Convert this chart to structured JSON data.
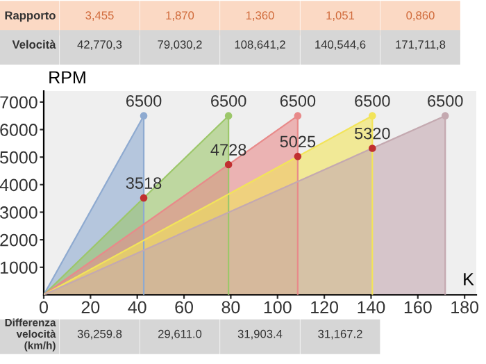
{
  "chart_data": {
    "type": "area",
    "xlabel": "K",
    "ylabel": "RPM",
    "xlim": [
      0,
      185
    ],
    "xticks": [
      0,
      20,
      40,
      60,
      80,
      100,
      120,
      140,
      160,
      180
    ],
    "ylim": [
      0,
      7400
    ],
    "yticks": [
      1000,
      2000,
      3000,
      4000,
      5000,
      6000,
      7000
    ],
    "grid": false,
    "legend": false,
    "series": [
      {
        "color": "#8eaad0",
        "x": [
          0,
          42.7703
        ],
        "values": [
          0,
          6500
        ],
        "value_labels": [
          null,
          "6500"
        ]
      },
      {
        "color": "#9cc76a",
        "x": [
          0,
          79.0302
        ],
        "values": [
          0,
          6500
        ],
        "value_labels": [
          null,
          "6500"
        ]
      },
      {
        "color": "#e88a8a",
        "x": [
          0,
          108.6412
        ],
        "values": [
          0,
          6500
        ],
        "value_labels": [
          null,
          "6500"
        ]
      },
      {
        "color": "#f2e45a",
        "x": [
          0,
          140.5446
        ],
        "values": [
          0,
          6500
        ],
        "value_labels": [
          null,
          "6500"
        ]
      },
      {
        "color": "#c4a9b0",
        "x": [
          0,
          171.7118
        ],
        "values": [
          0,
          6500
        ],
        "value_labels": [
          null,
          "6500"
        ]
      },
      {
        "type": "scatter",
        "color": "#c03030",
        "x": [
          42.7703,
          79.0302,
          108.6412,
          140.5446
        ],
        "values": [
          3518,
          4728,
          5025,
          5320
        ],
        "value_labels": [
          "3518",
          "4728",
          "5025",
          "5320"
        ]
      }
    ],
    "annotations": [
      "Rapporto",
      "3,455",
      "1,870",
      "1,360",
      "1,051",
      "0,860",
      "Velocità",
      "42,770,3",
      "79,030,2",
      "108,641,2",
      "140,544,6",
      "171,711,8",
      "Differenza velocità (km/h)",
      "36,259.8",
      "29,611.0",
      "31,903.4",
      "31,167.2"
    ]
  }
}
